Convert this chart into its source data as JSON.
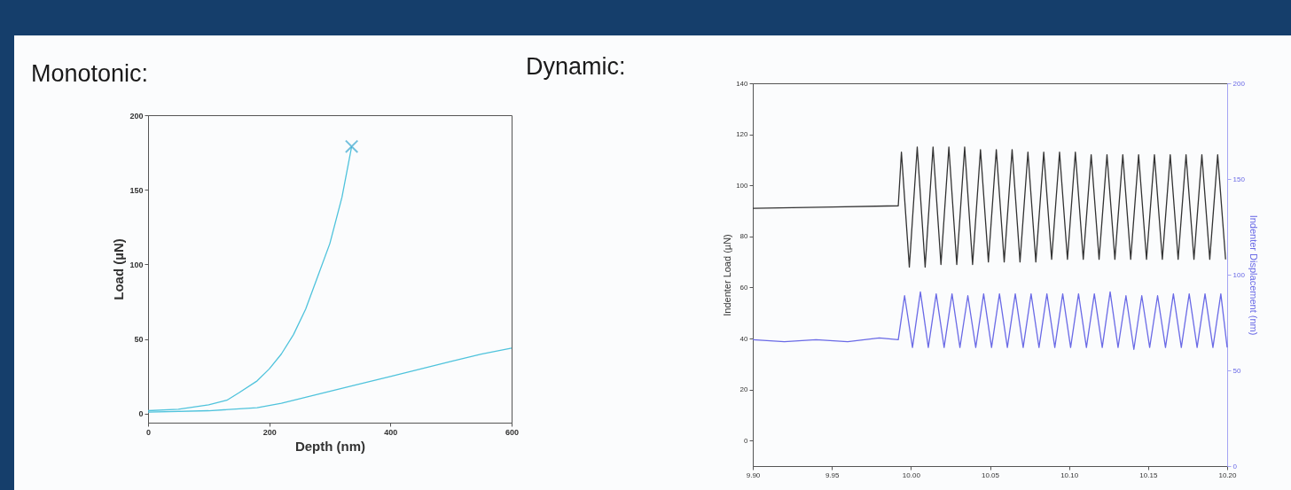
{
  "chart_data": [
    {
      "type": "line",
      "title": "Monotonic:",
      "xlabel": "Depth (nm)",
      "ylabel": "Load (µN)",
      "xlim": [
        0,
        600
      ],
      "xticks": [
        0,
        200,
        400,
        600
      ],
      "ylim": [
        -6,
        200
      ],
      "yticks": [
        0,
        50,
        100,
        150,
        200
      ],
      "series": [
        {
          "color": "#4fc3dc",
          "x": [
            0,
            50,
            100,
            130,
            150,
            180,
            200,
            220,
            240,
            260,
            280,
            300,
            320,
            336
          ],
          "values": [
            2,
            3,
            6,
            9,
            14,
            22,
            30,
            40,
            53,
            70,
            92,
            114,
            145,
            179
          ]
        },
        {
          "color": "#4fc3dc",
          "x": [
            0,
            100,
            180,
            220,
            260,
            300,
            340,
            400,
            450,
            500,
            550,
            600
          ],
          "values": [
            1,
            2,
            4,
            7,
            11,
            15,
            19,
            25,
            30,
            35,
            40,
            44
          ]
        },
        {
          "type": "scatter",
          "marker": "cross",
          "color": "#3aa8d0",
          "x": [
            336
          ],
          "values": [
            179
          ]
        }
      ]
    },
    {
      "type": "line",
      "title": "Dynamic:",
      "ylabel": "Indenter Load (µN)",
      "y2label": "Indenter Displacement (nm)",
      "xlim": [
        9.9,
        10.2
      ],
      "xticks": [
        {
          "value": 9.9,
          "label": "9.90"
        },
        {
          "value": 9.95,
          "label": "9.95"
        },
        {
          "value": 10,
          "label": "10.00"
        },
        {
          "value": 10.05,
          "label": "10.05"
        },
        {
          "value": 10.1,
          "label": "10.10"
        },
        {
          "value": 10.15,
          "label": "10.15"
        },
        {
          "value": 10.2,
          "label": "10.20"
        }
      ],
      "ylim": [
        -10,
        140
      ],
      "yticks": [
        0,
        20,
        40,
        60,
        80,
        100,
        120,
        140
      ],
      "y2lim": [
        0,
        200
      ],
      "y2ticks": [
        0,
        50,
        100,
        150,
        200
      ],
      "series": [
        {
          "color": "#333333",
          "x": [
            9.9,
            9.95,
            9.992,
            9.994,
            9.999,
            10.004,
            10.009,
            10.014,
            10.019,
            10.024,
            10.029,
            10.034,
            10.039,
            10.044,
            10.049,
            10.054,
            10.059,
            10.064,
            10.069,
            10.074,
            10.079,
            10.084,
            10.089,
            10.094,
            10.099,
            10.104,
            10.109,
            10.114,
            10.119,
            10.124,
            10.129,
            10.134,
            10.139,
            10.144,
            10.149,
            10.154,
            10.159,
            10.164,
            10.169,
            10.174,
            10.179,
            10.184,
            10.189,
            10.194,
            10.199
          ],
          "values": [
            91,
            91.5,
            92,
            113,
            68,
            115,
            68,
            115,
            69,
            115,
            69,
            115,
            69,
            114,
            70,
            114,
            70,
            114,
            70,
            113,
            70,
            113,
            71,
            113,
            71,
            113,
            71,
            112,
            71,
            112,
            71,
            112,
            71,
            112,
            71,
            112,
            71,
            112,
            71,
            112,
            71,
            112,
            71,
            112,
            71
          ]
        },
        {
          "color": "#6a6ae6",
          "axis": "y2",
          "x": [
            9.9,
            9.92,
            9.94,
            9.96,
            9.98,
            9.992,
            9.996,
            10.001,
            10.006,
            10.011,
            10.016,
            10.021,
            10.026,
            10.031,
            10.036,
            10.041,
            10.046,
            10.051,
            10.056,
            10.061,
            10.066,
            10.071,
            10.076,
            10.081,
            10.086,
            10.091,
            10.096,
            10.101,
            10.106,
            10.111,
            10.116,
            10.121,
            10.126,
            10.131,
            10.136,
            10.141,
            10.146,
            10.151,
            10.156,
            10.161,
            10.166,
            10.171,
            10.176,
            10.181,
            10.186,
            10.191,
            10.196,
            10.2
          ],
          "values": [
            66,
            65,
            66,
            65,
            67,
            66,
            89,
            62,
            91,
            62,
            90,
            62,
            90,
            62,
            89,
            62,
            90,
            62,
            90,
            62,
            90,
            62,
            90,
            62,
            90,
            62,
            90,
            62,
            90,
            62,
            90,
            62,
            91,
            62,
            89,
            61,
            89,
            62,
            89,
            62,
            90,
            62,
            90,
            62,
            90,
            62,
            90,
            62
          ]
        }
      ]
    }
  ]
}
